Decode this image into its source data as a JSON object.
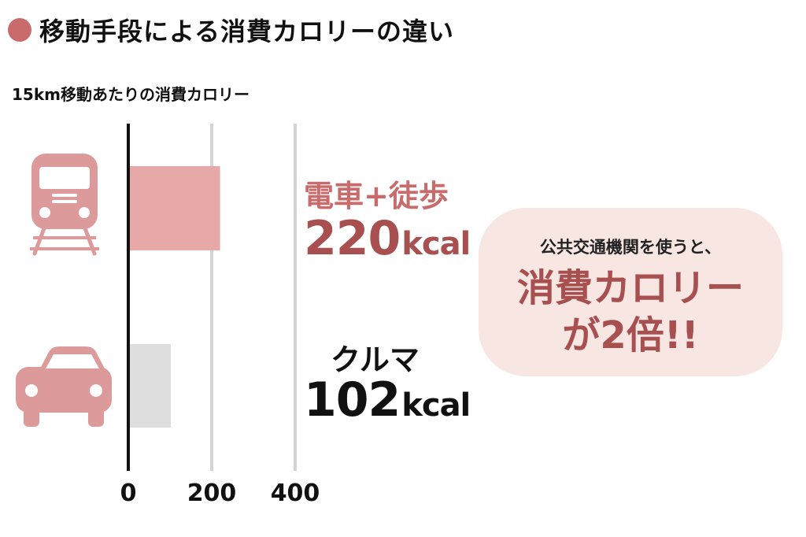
{
  "colors": {
    "accent": "#c96b6b",
    "dark_accent": "#a84f4f",
    "bar_primary": "#e7a8a8",
    "bar_secondary": "#dedede",
    "icon": "#dc9a9a",
    "grid": "#d4d4d4",
    "axis": "#111111",
    "callout_bg": "#f8e6e3"
  },
  "header": {
    "title": "移動手段による消費カロリーの違い",
    "subtitle": "15km移動あたりの消費カロリー"
  },
  "chart_data": {
    "type": "bar",
    "orientation": "horizontal",
    "categories": [
      "電車+徒歩",
      "クルマ"
    ],
    "values": [
      220,
      102
    ],
    "unit": "kcal",
    "xlim": [
      0,
      400
    ],
    "xticks": [
      0,
      200,
      400
    ],
    "grid": true,
    "icons": [
      "train-icon",
      "car-icon"
    ]
  },
  "labels": {
    "train": {
      "name": "電車+徒歩",
      "value": "220",
      "unit": "kcal"
    },
    "car": {
      "name": "クルマ",
      "value": "102",
      "unit": "kcal"
    }
  },
  "callout": {
    "lead": "公共交通機関を使うと、",
    "line1": "消費カロリー",
    "line2": "が2倍!!"
  }
}
